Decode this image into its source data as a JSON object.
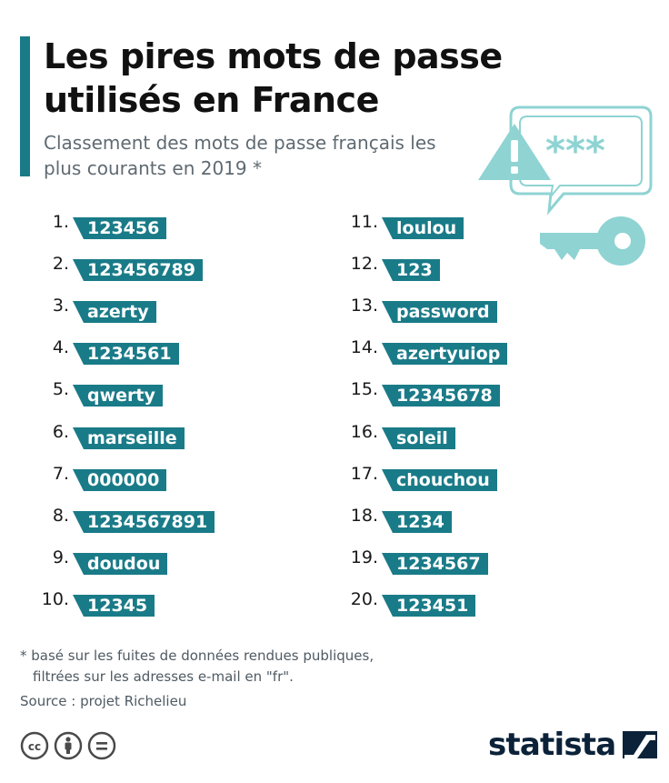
{
  "header": {
    "title": "Les pires mots de passe utilisés en France",
    "subtitle": "Classement des mots de passe français les plus courants en 2019 *"
  },
  "illustration": {
    "masked_password": "***",
    "icons": [
      "speech-bubble-icon",
      "warning-triangle-icon",
      "key-icon"
    ]
  },
  "passwords": [
    {
      "rank": "1.",
      "value": "123456"
    },
    {
      "rank": "2.",
      "value": "123456789"
    },
    {
      "rank": "3.",
      "value": "azerty"
    },
    {
      "rank": "4.",
      "value": "1234561"
    },
    {
      "rank": "5.",
      "value": "qwerty"
    },
    {
      "rank": "6.",
      "value": "marseille"
    },
    {
      "rank": "7.",
      "value": "000000"
    },
    {
      "rank": "8.",
      "value": "1234567891"
    },
    {
      "rank": "9.",
      "value": "doudou"
    },
    {
      "rank": "10.",
      "value": "12345"
    },
    {
      "rank": "11.",
      "value": "loulou"
    },
    {
      "rank": "12.",
      "value": "123"
    },
    {
      "rank": "13.",
      "value": "password"
    },
    {
      "rank": "14.",
      "value": "azertyuiop"
    },
    {
      "rank": "15.",
      "value": "12345678"
    },
    {
      "rank": "16.",
      "value": "soleil"
    },
    {
      "rank": "17.",
      "value": "chouchou"
    },
    {
      "rank": "18.",
      "value": "1234"
    },
    {
      "rank": "19.",
      "value": "1234567"
    },
    {
      "rank": "20.",
      "value": "123451"
    }
  ],
  "footer": {
    "footnote_line1": "* basé sur les fuites de données rendues publiques,",
    "footnote_line2": "filtrées sur les adresses e-mail en \"fr\".",
    "source": "Source : projet Richelieu",
    "license_icons": [
      "cc-icon",
      "attribution-icon",
      "no-derivatives-icon"
    ],
    "brand": "statista",
    "brand_icon": "statista-logo-icon"
  },
  "colors": {
    "accent": "#1a7b88",
    "illustration": "#8fd3d3",
    "brand": "#0b2239"
  }
}
